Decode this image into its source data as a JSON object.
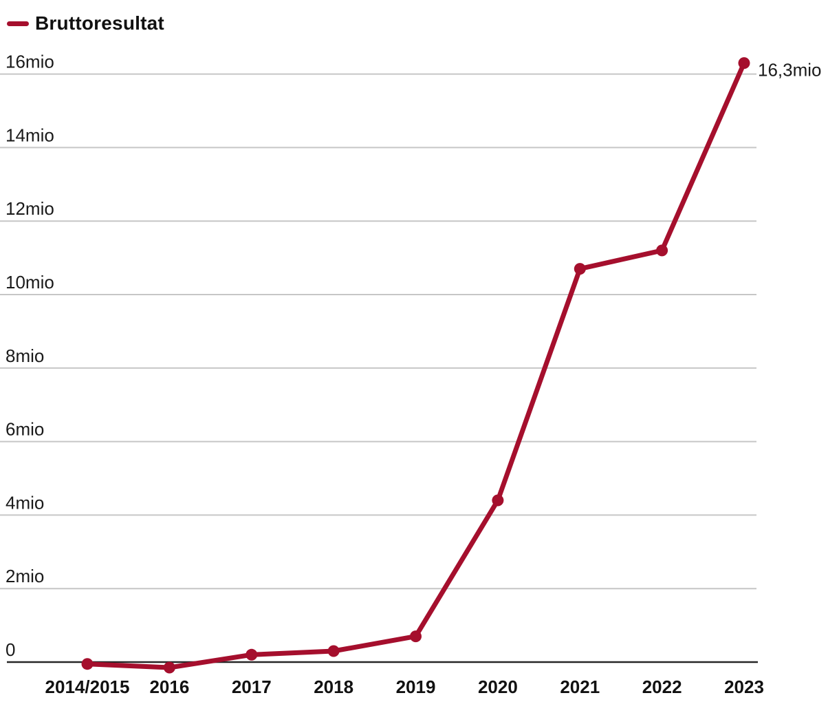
{
  "legend": {
    "label": "Bruttoresultat",
    "swatch_icon": "line-dash-icon"
  },
  "colors": {
    "line": "#A50F2D",
    "grid": "#C6C6C6",
    "axis": "#262626",
    "text": "#1A1A1A"
  },
  "chart_data": {
    "type": "line",
    "title": "",
    "categories": [
      "2014/2015",
      "2016",
      "2017",
      "2018",
      "2019",
      "2020",
      "2021",
      "2022",
      "2023"
    ],
    "series": [
      {
        "name": "Bruttoresultat",
        "values": [
          -0.05,
          -0.15,
          0.2,
          0.3,
          0.7,
          4.4,
          10.7,
          11.2,
          16.3
        ]
      }
    ],
    "unit": "mio",
    "xlabel": "",
    "ylabel": "",
    "ylim": [
      -0.5,
      16.8
    ],
    "y_ticks": [
      {
        "value": 16,
        "label": "16mio"
      },
      {
        "value": 14,
        "label": "14mio"
      },
      {
        "value": 12,
        "label": "12mio"
      },
      {
        "value": 10,
        "label": "10mio"
      },
      {
        "value": 8,
        "label": "8mio"
      },
      {
        "value": 6,
        "label": "6mio"
      },
      {
        "value": 4,
        "label": "4mio"
      },
      {
        "value": 2,
        "label": "2mio"
      },
      {
        "value": 0,
        "label": "0"
      }
    ],
    "grid": "horizontal",
    "legend_position": "top-left",
    "end_annotation": "16,3mio",
    "marker": "circle"
  }
}
